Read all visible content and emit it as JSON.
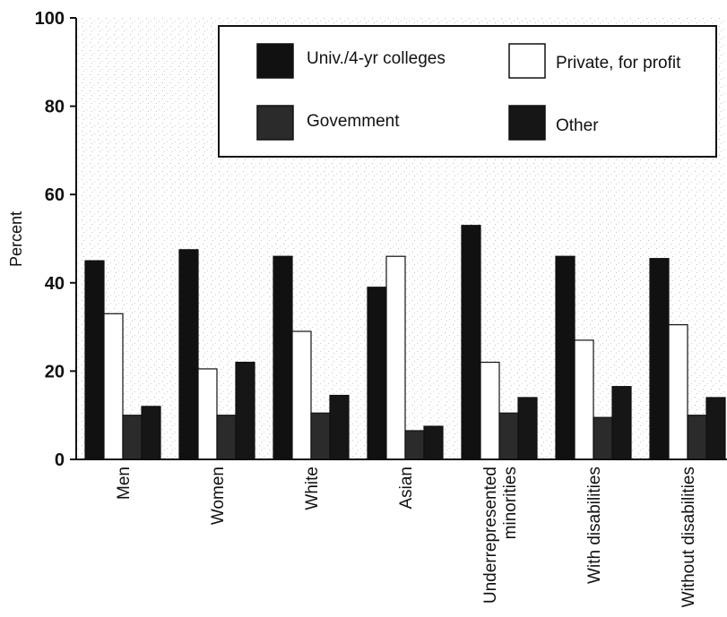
{
  "chart_data": {
    "type": "bar",
    "title": "",
    "xlabel": "",
    "ylabel": "Percent",
    "ylim": [
      0,
      100
    ],
    "yticks": [
      0,
      20,
      40,
      60,
      80,
      100
    ],
    "grid": false,
    "legend_position": "top-right",
    "categories": [
      "Men",
      "Women",
      "White",
      "Asian",
      "Underrepresented minorities",
      "With disabilities",
      "Without disabilities"
    ],
    "category_label_lines": [
      [
        "Men"
      ],
      [
        "Women"
      ],
      [
        "White"
      ],
      [
        "Asian"
      ],
      [
        "Underrepresented",
        "minorities"
      ],
      [
        "With disabilities"
      ],
      [
        "Without disabilities"
      ]
    ],
    "series": [
      {
        "name": "Univ./4-yr colleges",
        "color": "#111111",
        "values": [
          45,
          47.5,
          46,
          39,
          53,
          46,
          45.5
        ]
      },
      {
        "name": "Private, for profit",
        "color": "#ffffff",
        "values": [
          33,
          20.5,
          29,
          46,
          22,
          27,
          30.5
        ]
      },
      {
        "name": "Govemment",
        "color": "#2b2b2b",
        "values": [
          10,
          10,
          10.5,
          6.5,
          10.5,
          9.5,
          10
        ]
      },
      {
        "name": "Other",
        "color": "#161616",
        "values": [
          12,
          22,
          14.5,
          7.5,
          14,
          16.5,
          14
        ]
      }
    ]
  }
}
